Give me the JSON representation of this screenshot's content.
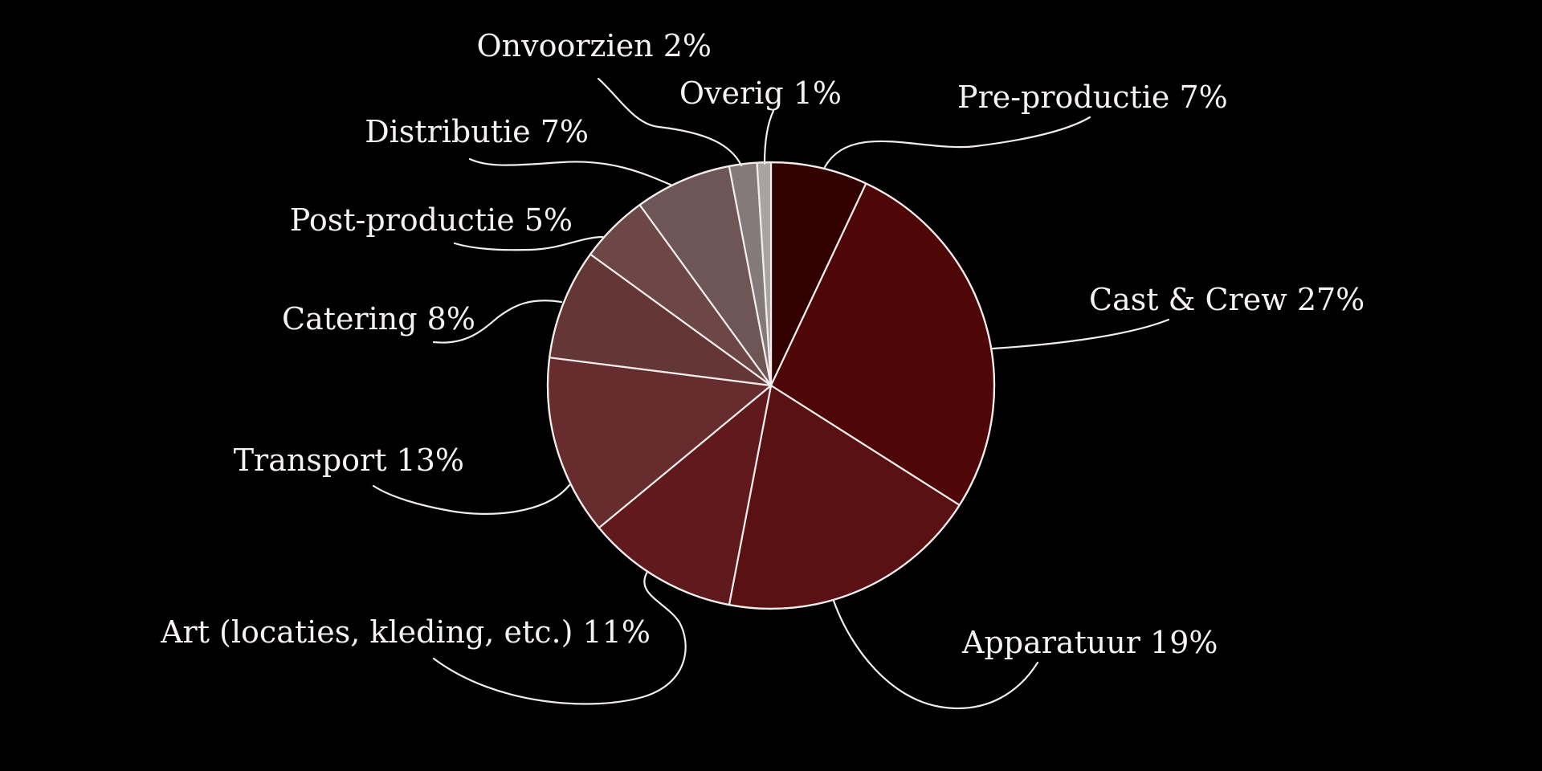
{
  "chart_data": {
    "type": "pie",
    "title": "",
    "start": "top",
    "direction": "clockwise",
    "slices": [
      {
        "label": "Pre-productie",
        "value": 7,
        "display": "Pre-productie 7%",
        "color": "#330000"
      },
      {
        "label": "Cast & Crew",
        "value": 27,
        "display": "Cast & Crew 27%",
        "color": "#4f0606"
      },
      {
        "label": "Apparatuur",
        "value": 19,
        "display": "Apparatuur 19%",
        "color": "#591114"
      },
      {
        "label": "Art (locaties, kleding, etc.)",
        "value": 11,
        "display": "Art (locaties, kleding, etc.) 11%",
        "color": "#601a1d"
      },
      {
        "label": "Transport",
        "value": 13,
        "display": "Transport 13%",
        "color": "#662c2e"
      },
      {
        "label": "Catering",
        "value": 8,
        "display": "Catering 8%",
        "color": "#653636"
      },
      {
        "label": "Post-productie",
        "value": 5,
        "display": "Post-productie 5%",
        "color": "#6d4646"
      },
      {
        "label": "Distributie",
        "value": 7,
        "display": "Distributie 7%",
        "color": "#6e5656"
      },
      {
        "label": "Onvoorzien",
        "value": 2,
        "display": "Onvoorzien 2%",
        "color": "#857a7a"
      },
      {
        "label": "Overig",
        "value": 1,
        "display": "Overig 1%",
        "color": "#a9a3a3"
      }
    ]
  }
}
